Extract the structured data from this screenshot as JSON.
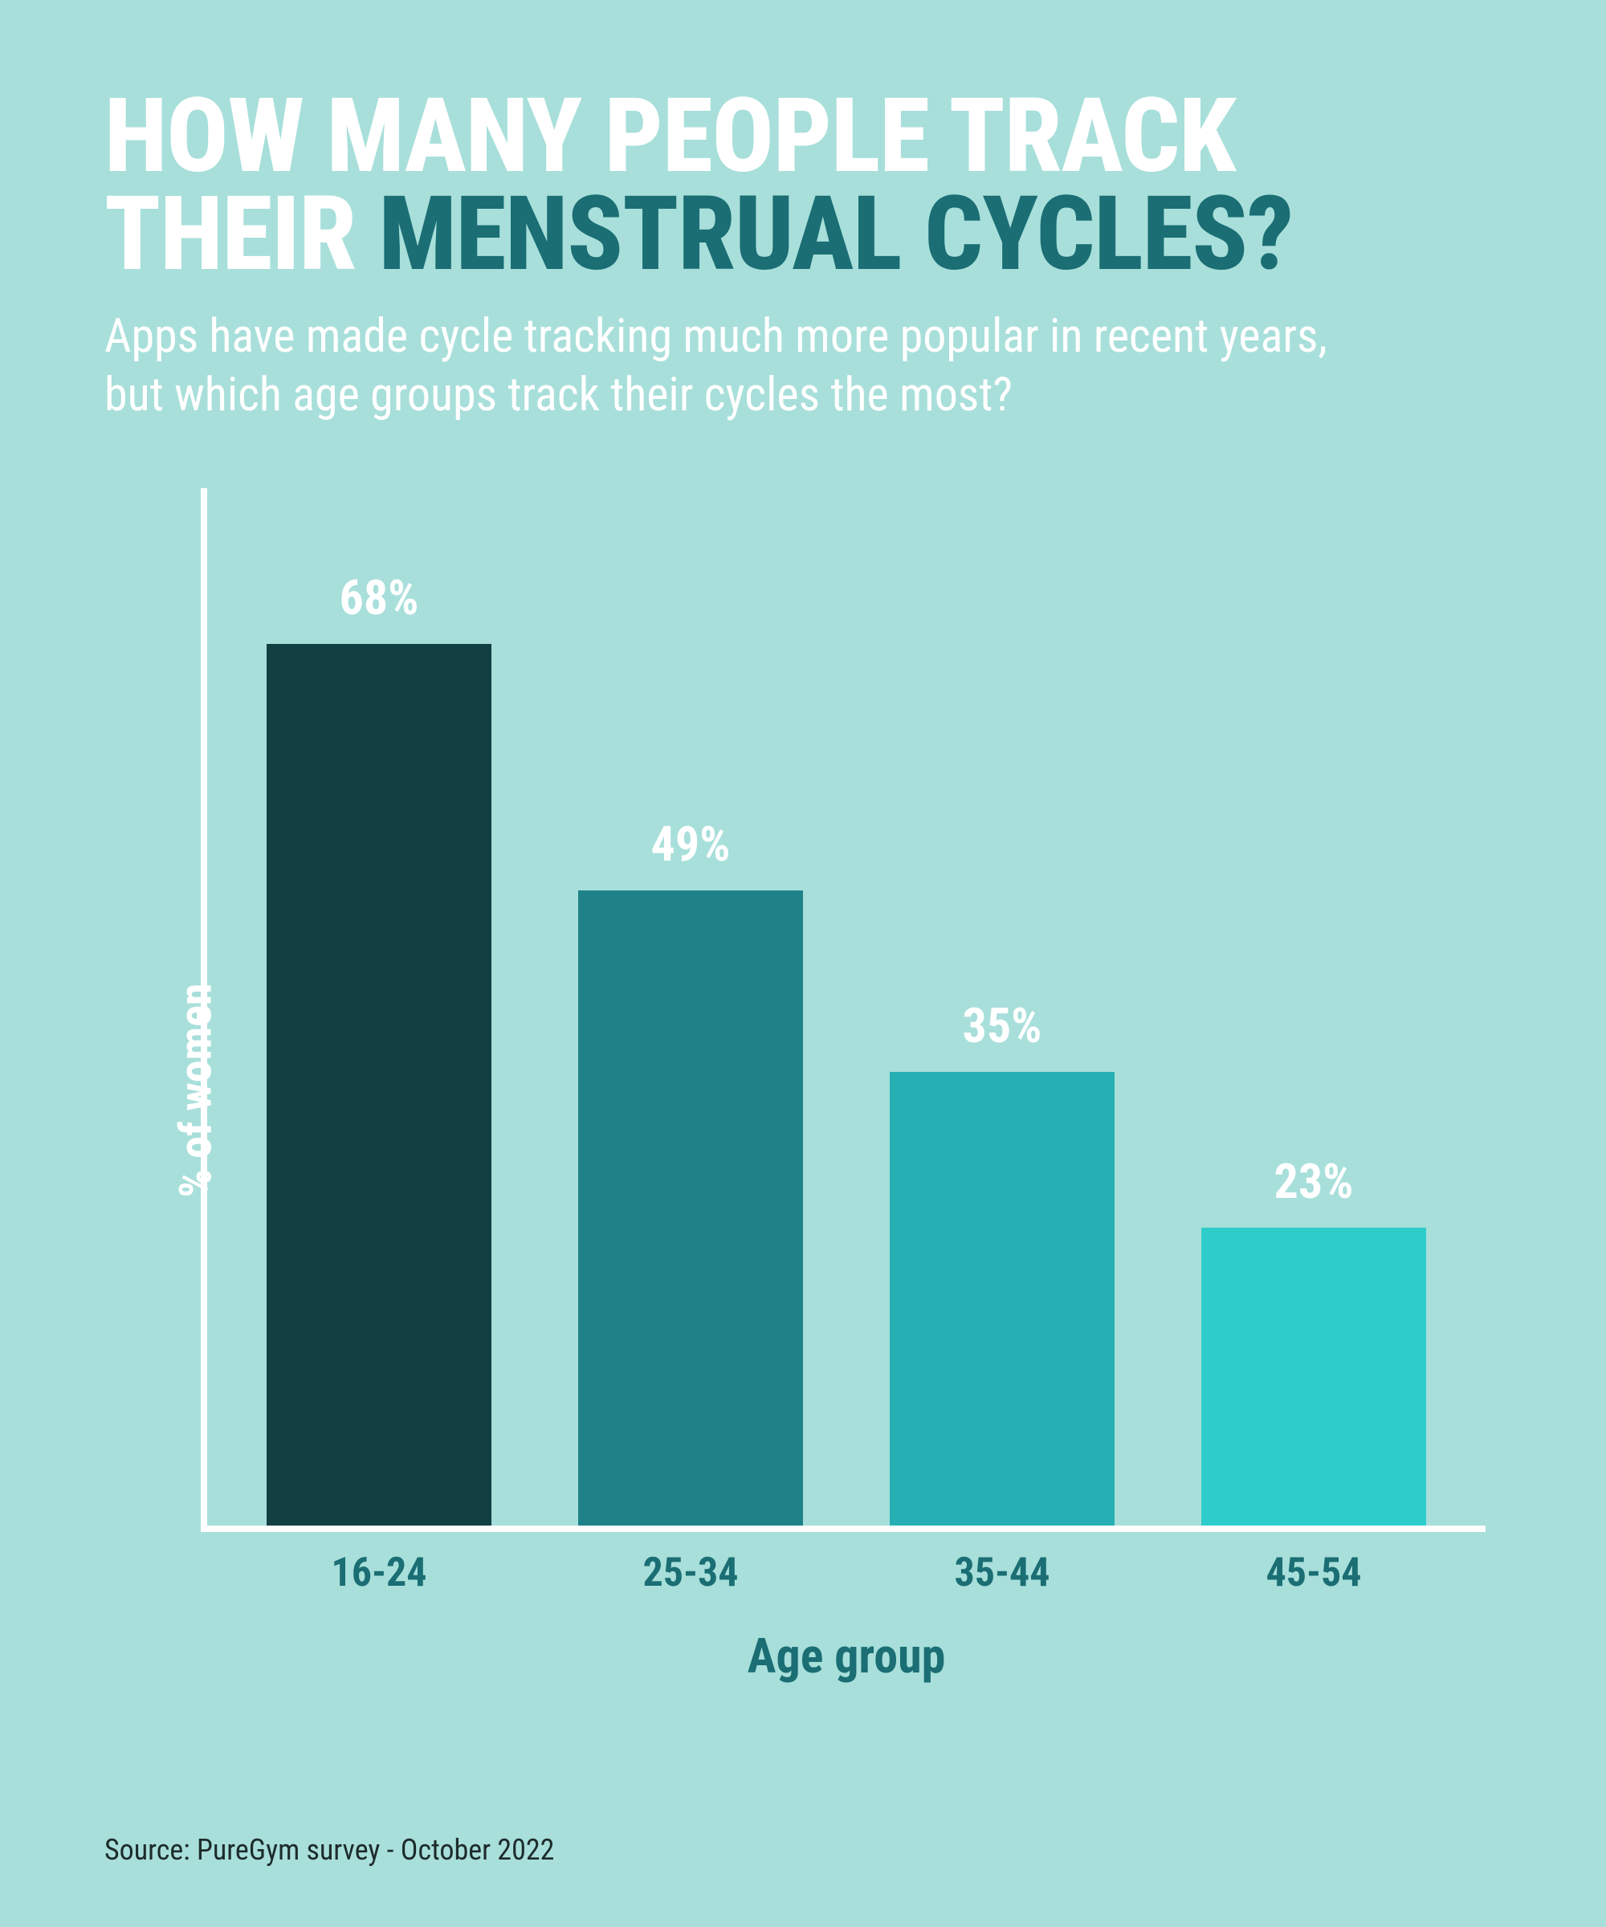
{
  "background_color": "#a8dfda",
  "title": {
    "part1": "HOW MANY PEOPLE TRACK THEIR ",
    "part2": "MENSTRUAL CYCLES?",
    "color1": "#ffffff",
    "color2": "#1a6e74",
    "fontsize": 128
  },
  "subtitle": {
    "text": "Apps have made cycle tracking much more popular in recent years, but which age groups track their cycles the most?",
    "color": "#ffffff",
    "fontsize": 58
  },
  "chart": {
    "type": "bar",
    "ylabel": "% of women",
    "ylabel_color": "#ffffff",
    "ylabel_fontsize": 56,
    "xlabel": "Age group",
    "xlabel_color": "#1a6e74",
    "xlabel_fontsize": 60,
    "ylim_max": 80,
    "axis_color": "#ffffff",
    "axis_width": 8,
    "categories": [
      "16-24",
      "25-34",
      "35-44",
      "45-54"
    ],
    "category_color": "#1a6e74",
    "category_fontsize": 50,
    "values": [
      68,
      49,
      35,
      23
    ],
    "value_labels": [
      "68%",
      "49%",
      "35%",
      "23%"
    ],
    "value_label_color": "#ffffff",
    "value_label_fontsize": 60,
    "bar_colors": [
      "#113f42",
      "#1f8289",
      "#27b0b4",
      "#2ecdcb"
    ],
    "bar_width_pct": 72
  },
  "source": {
    "text": "Source: PureGym survey - October 2022",
    "color": "#1d2b2b",
    "fontsize": 36
  }
}
